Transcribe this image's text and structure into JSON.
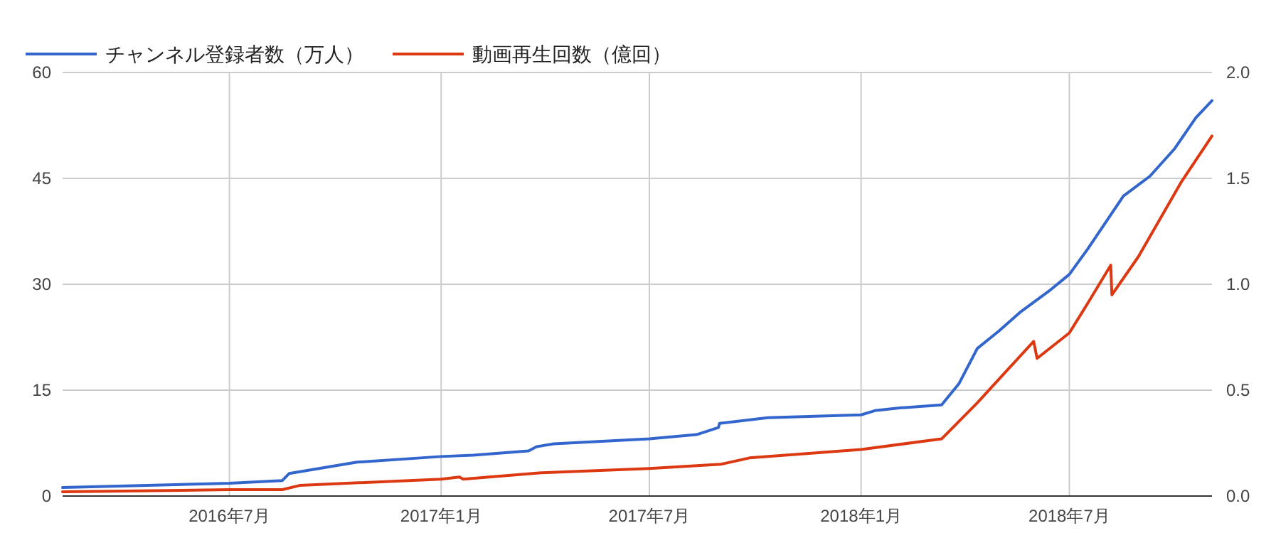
{
  "chart_data": {
    "type": "line",
    "legend": "top left",
    "grid": true,
    "xlim": [
      "2016-02-07",
      "2018-11-02"
    ],
    "xticks": [
      {
        "value": "2016-07-01",
        "label": "2016年7月"
      },
      {
        "value": "2017-01-01",
        "label": "2017年1月"
      },
      {
        "value": "2017-07-01",
        "label": "2017年7月"
      },
      {
        "value": "2018-01-01",
        "label": "2018年1月"
      },
      {
        "value": "2018-07-01",
        "label": "2018年7月"
      }
    ],
    "ylim": [
      0,
      60
    ],
    "yticks": [
      0,
      15,
      30,
      45,
      60
    ],
    "y2lim": [
      0,
      2
    ],
    "y2ticks": [
      {
        "value": 0,
        "label": "0.0"
      },
      {
        "value": 0.5,
        "label": "0.5"
      },
      {
        "value": 1,
        "label": "1.0"
      },
      {
        "value": 1.5,
        "label": "1.5"
      },
      {
        "value": 2,
        "label": "2.0"
      }
    ],
    "series": [
      {
        "name": "チャンネル登録者数（万人）",
        "color": "#3366cc",
        "x": [
          "2016-02-07",
          "2016-07-01",
          "2016-08-16",
          "2016-08-22",
          "2016-10-20",
          "2017-01-01",
          "2017-01-29",
          "2017-03-18",
          "2017-03-25",
          "2017-04-09",
          "2017-07-01",
          "2017-08-11",
          "2017-08-30",
          "2017-08-31",
          "2017-10-12",
          "2018-01-01",
          "2018-01-13",
          "2018-02-05",
          "2018-03-12",
          "2018-03-27",
          "2018-04-12",
          "2018-05-01",
          "2018-05-19",
          "2018-06-13",
          "2018-07-01",
          "2018-07-17",
          "2018-08-17",
          "2018-09-09",
          "2018-09-30",
          "2018-10-19",
          "2018-11-02"
        ],
        "values": [
          1.2,
          1.8,
          2.2,
          3.2,
          4.8,
          5.6,
          5.8,
          6.4,
          7.0,
          7.4,
          8.1,
          8.7,
          9.7,
          10.3,
          11.1,
          11.5,
          12.1,
          12.5,
          12.9,
          15.9,
          20.9,
          23.4,
          26,
          29,
          31.4,
          35,
          42.5,
          45.3,
          49.1,
          53.6,
          56
        ]
      },
      {
        "name": "動画再生回数（億回）",
        "color": "#dc3912",
        "axis": "y2",
        "x": [
          "2016-02-07",
          "2016-07-01",
          "2016-08-16",
          "2016-08-31",
          "2017-01-01",
          "2017-01-17",
          "2017-01-20",
          "2017-03-29",
          "2017-07-01",
          "2017-09-01",
          "2017-09-26",
          "2018-01-01",
          "2018-03-12",
          "2018-04-12",
          "2018-05-09",
          "2018-05-31",
          "2018-06-03",
          "2018-07-01",
          "2018-07-17",
          "2018-08-06",
          "2018-08-07",
          "2018-08-30",
          "2018-10-06",
          "2018-11-02"
        ],
        "values": [
          0.02,
          0.03,
          0.03,
          0.05,
          0.08,
          0.09,
          0.08,
          0.11,
          0.13,
          0.15,
          0.18,
          0.22,
          0.27,
          0.44,
          0.6,
          0.73,
          0.65,
          0.77,
          0.91,
          1.09,
          0.95,
          1.13,
          1.48,
          1.7
        ]
      }
    ]
  }
}
